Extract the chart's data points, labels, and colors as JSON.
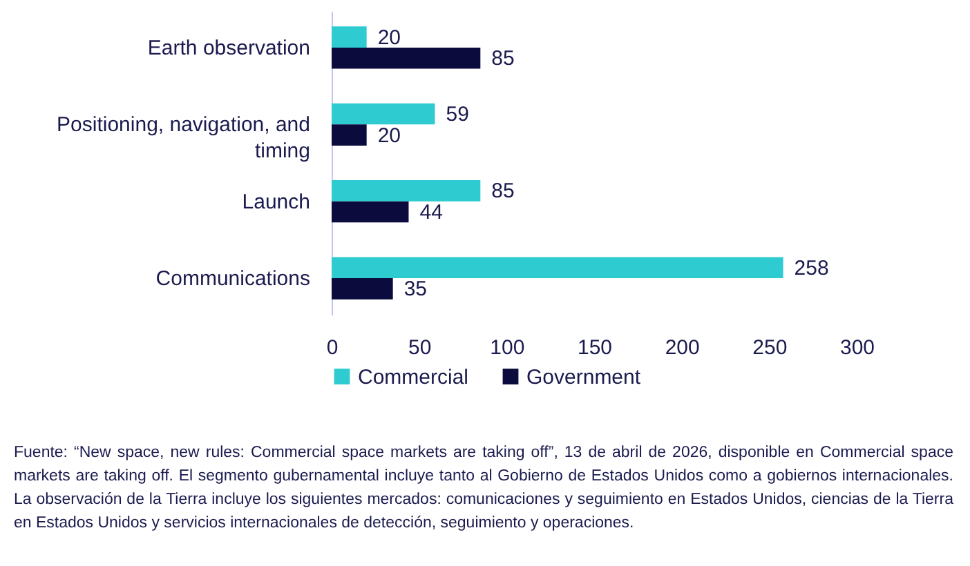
{
  "chart_data": {
    "type": "bar",
    "orientation": "horizontal",
    "categories": [
      "Earth observation",
      "Positioning, navigation, and timing",
      "Launch",
      "Communications"
    ],
    "series": [
      {
        "name": "Commercial",
        "color": "#2ecbd1",
        "values": [
          20,
          59,
          85,
          258
        ]
      },
      {
        "name": "Government",
        "color": "#0b0c3d",
        "values": [
          85,
          20,
          44,
          35
        ]
      }
    ],
    "xlim": [
      0,
      300
    ],
    "xticks": [
      0,
      50,
      100,
      150,
      200,
      250,
      300
    ],
    "grid": false,
    "legend": "bottom",
    "data_labels": true,
    "annotations": [
      "Fuente: “New space, new rules: Commercial space markets are taking off”, 13 de abril de 2026, disponible en Commercial space markets are taking off. El segmento gubernamental incluye tanto al Gobierno de Estados Unidos como a gobiernos internacionales. La observación de la Tierra incluye los siguientes mercados: comunicaciones y seguimiento en Estados Unidos, ciencias de la Tierra en Estados Unidos y servicios internacionales de detección, seguimiento y operaciones."
    ]
  }
}
